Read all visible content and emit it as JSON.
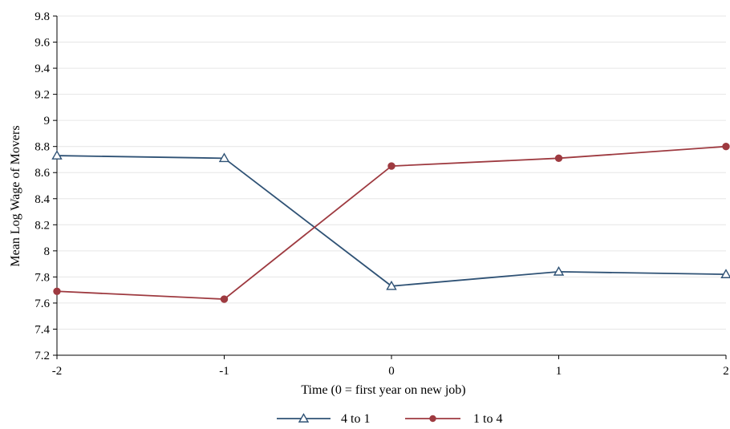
{
  "chart_data": {
    "type": "line",
    "title": "",
    "xlabel": "Time (0 = first year on new job)",
    "ylabel": "Mean Log Wage of Movers",
    "x": [
      -2,
      -1,
      0,
      1,
      2
    ],
    "x_ticks": [
      "-2",
      "-1",
      "0",
      "1",
      "2"
    ],
    "xlim": [
      -2,
      2
    ],
    "ylim": [
      7.2,
      9.8
    ],
    "y_ticks": [
      "7.2",
      "7.4",
      "7.6",
      "7.8",
      "8",
      "8.2",
      "8.4",
      "8.6",
      "8.8",
      "9",
      "9.2",
      "9.4",
      "9.6",
      "9.8"
    ],
    "grid": true,
    "legend_position": "bottom",
    "series": [
      {
        "name": "4 to 1",
        "values": [
          8.73,
          8.71,
          7.73,
          7.84,
          7.82
        ],
        "color": "#2f5275",
        "marker": "triangle-open"
      },
      {
        "name": "1 to 4",
        "values": [
          7.69,
          7.63,
          8.65,
          8.71,
          8.8
        ],
        "color": "#9e3a40",
        "marker": "circle-filled"
      }
    ]
  }
}
